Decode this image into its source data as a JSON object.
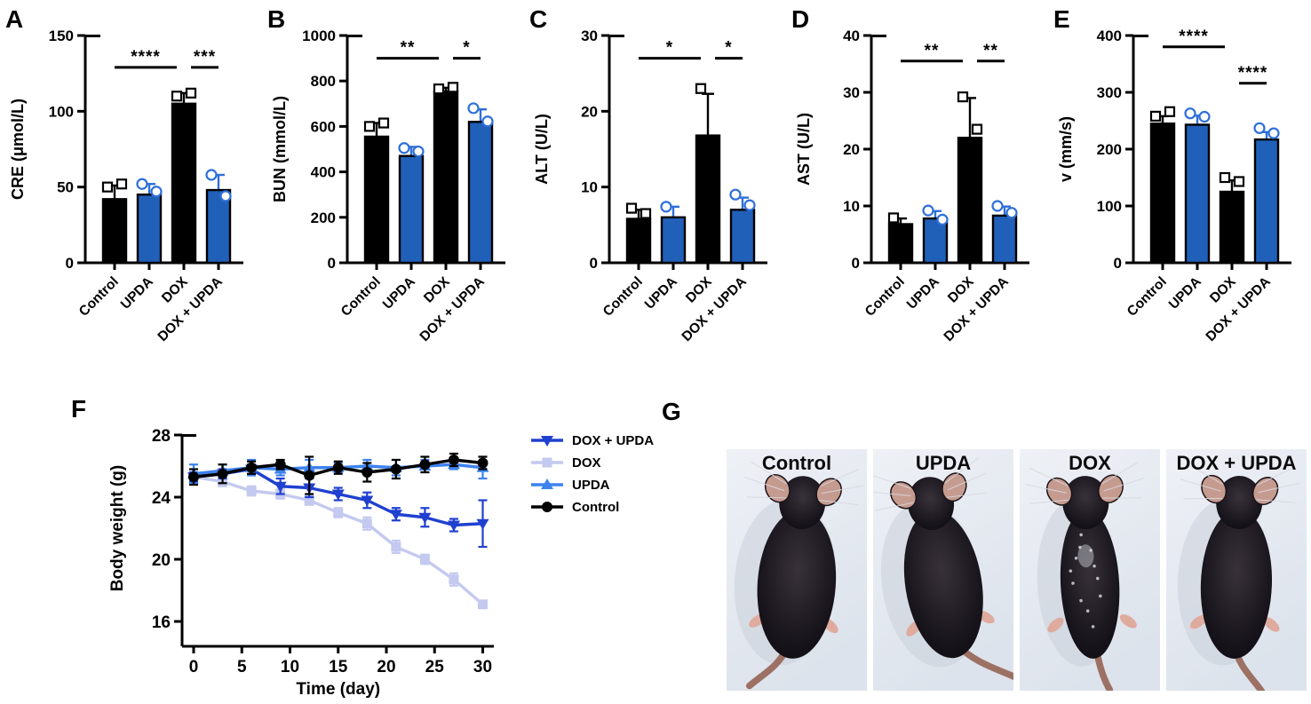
{
  "colors": {
    "bar_blue": "#2160b8",
    "point_blue": "#2e6fd9",
    "black": "#000000",
    "series_dox_upda": "#2040d0",
    "series_dox": "#c3c9ef",
    "series_upda": "#3d82ee",
    "series_control": "#000000",
    "photo_bg_light": "#eef1f6",
    "photo_bg_dark": "#dde3ec"
  },
  "chart_data": [
    {
      "id": "A",
      "panel_letter": "A",
      "type": "bar",
      "ylabel": "CRE (μmol/L)",
      "categories": [
        "Control",
        "UPDA",
        "DOX",
        "DOX + UPDA"
      ],
      "values": [
        42,
        45,
        105,
        48
      ],
      "errors": [
        9,
        7,
        7,
        10
      ],
      "points": [
        [
          50,
          52
        ],
        [
          52,
          47
        ],
        [
          110,
          112
        ],
        [
          58,
          44
        ]
      ],
      "ylim": [
        0,
        150
      ],
      "yticks": [
        0,
        50,
        100,
        150
      ],
      "bar_styles": [
        "black",
        "blue",
        "black",
        "blue"
      ],
      "significance": [
        {
          "from": 0,
          "to": 2,
          "label": "****",
          "y": 129
        },
        {
          "from": 2,
          "to": 3,
          "label": "***",
          "y": 129
        }
      ]
    },
    {
      "id": "B",
      "panel_letter": "B",
      "type": "bar",
      "ylabel": "BUN (mmol/L)",
      "categories": [
        "Control",
        "UPDA",
        "DOX",
        "DOX + UPDA"
      ],
      "values": [
        555,
        470,
        755,
        620
      ],
      "errors": [
        60,
        40,
        15,
        55
      ],
      "points": [
        [
          600,
          615
        ],
        [
          505,
          490
        ],
        [
          765,
          772
        ],
        [
          680,
          622
        ]
      ],
      "ylim": [
        0,
        1000
      ],
      "yticks": [
        0,
        200,
        400,
        600,
        800,
        1000
      ],
      "bar_styles": [
        "black",
        "blue",
        "black",
        "blue"
      ],
      "significance": [
        {
          "from": 0,
          "to": 2,
          "label": "**",
          "y": 900
        },
        {
          "from": 2,
          "to": 3,
          "label": "*",
          "y": 900
        }
      ]
    },
    {
      "id": "C",
      "panel_letter": "C",
      "type": "bar",
      "ylabel": "ALT (U/L)",
      "categories": [
        "Control",
        "UPDA",
        "DOX",
        "DOX + UPDA"
      ],
      "values": [
        5.8,
        6.0,
        16.8,
        7.0
      ],
      "errors": [
        1.2,
        1.4,
        5.5,
        1.6
      ],
      "points": [
        [
          7.2,
          6.5
        ],
        [
          7.4
        ],
        [
          23
        ],
        [
          9,
          7.6
        ]
      ],
      "ylim": [
        0,
        30
      ],
      "yticks": [
        0,
        10,
        20,
        30
      ],
      "bar_styles": [
        "black",
        "blue",
        "black",
        "blue"
      ],
      "significance": [
        {
          "from": 0,
          "to": 2,
          "label": "*",
          "y": 27
        },
        {
          "from": 2,
          "to": 3,
          "label": "*",
          "y": 27
        }
      ]
    },
    {
      "id": "D",
      "panel_letter": "D",
      "type": "bar",
      "ylabel": "AST (U/L)",
      "categories": [
        "Control",
        "UPDA",
        "DOX",
        "DOX + UPDA"
      ],
      "values": [
        6.8,
        7.8,
        22,
        8.3
      ],
      "errors": [
        1.0,
        1.3,
        7.0,
        1.6
      ],
      "points": [
        [
          7.9
        ],
        [
          9.2,
          7.6
        ],
        [
          29.2,
          23.5
        ],
        [
          10,
          8.8
        ]
      ],
      "ylim": [
        0,
        40
      ],
      "yticks": [
        0,
        10,
        20,
        30,
        40
      ],
      "bar_styles": [
        "black",
        "blue",
        "black",
        "blue"
      ],
      "significance": [
        {
          "from": 0,
          "to": 2,
          "label": "**",
          "y": 35.5
        },
        {
          "from": 2,
          "to": 3,
          "label": "**",
          "y": 35.5
        }
      ]
    },
    {
      "id": "E",
      "panel_letter": "E",
      "type": "bar",
      "ylabel": "v (mm/s)",
      "categories": [
        "Control",
        "UPDA",
        "DOX",
        "DOX + UPDA"
      ],
      "values": [
        245,
        243,
        125,
        217
      ],
      "errors": [
        13,
        16,
        20,
        13
      ],
      "points": [
        [
          258,
          266
        ],
        [
          263,
          257
        ],
        [
          150,
          143
        ],
        [
          237,
          228
        ]
      ],
      "ylim": [
        0,
        400
      ],
      "yticks": [
        0,
        100,
        200,
        300,
        400
      ],
      "bar_styles": [
        "black",
        "blue",
        "black",
        "blue"
      ],
      "significance": [
        {
          "from": 0,
          "to": 2,
          "label": "****",
          "y": 380
        },
        {
          "from": 2,
          "to": 3,
          "label": "****",
          "y": 316
        }
      ]
    },
    {
      "id": "F",
      "panel_letter": "F",
      "type": "line",
      "xlabel": "Time (day)",
      "ylabel": "Body weight (g)",
      "x": [
        0,
        3,
        6,
        9,
        12,
        15,
        18,
        21,
        24,
        27,
        30
      ],
      "xticks": [
        0,
        5,
        10,
        15,
        20,
        25,
        30
      ],
      "ylim": [
        16,
        28
      ],
      "yticks": [
        16,
        20,
        24,
        28
      ],
      "series": [
        {
          "name": "DOX + UPDA",
          "marker": "triangle-down",
          "color": "#2040d0",
          "values": [
            25.3,
            25.5,
            25.8,
            24.7,
            24.6,
            24.2,
            23.8,
            22.9,
            22.7,
            22.2,
            22.3
          ],
          "errors": [
            0.3,
            0.3,
            0.3,
            0.5,
            0.6,
            0.4,
            0.5,
            0.4,
            0.6,
            0.4,
            1.5
          ]
        },
        {
          "name": "DOX",
          "marker": "square",
          "color": "#c3c9ef",
          "values": [
            25.3,
            25.0,
            24.4,
            24.2,
            23.8,
            23.0,
            22.3,
            20.8,
            20.0,
            18.7,
            17.1
          ],
          "errors": [
            0.2,
            0.3,
            0.3,
            0.3,
            0.3,
            0.3,
            0.4,
            0.4,
            0.3,
            0.4,
            0.2
          ]
        },
        {
          "name": "UPDA",
          "marker": "triangle-up",
          "color": "#3d82ee",
          "values": [
            25.5,
            25.7,
            25.9,
            25.8,
            25.9,
            25.9,
            26.0,
            25.9,
            26.0,
            26.1,
            25.9
          ],
          "errors": [
            0.6,
            0.4,
            0.5,
            0.4,
            0.5,
            0.3,
            0.4,
            0.5,
            0.4,
            0.3,
            0.7
          ]
        },
        {
          "name": "Control",
          "marker": "circle",
          "color": "#000000",
          "values": [
            25.3,
            25.5,
            25.9,
            26.1,
            25.4,
            25.9,
            25.6,
            25.8,
            26.1,
            26.4,
            26.2
          ],
          "errors": [
            0.5,
            0.6,
            0.4,
            0.3,
            1.2,
            0.4,
            0.6,
            0.6,
            0.5,
            0.4,
            0.4
          ]
        }
      ],
      "legend_position": "right",
      "draw_order": [
        1,
        0,
        2,
        3
      ]
    }
  ],
  "photos": {
    "panel_letter": "G",
    "items": [
      {
        "label": "Control",
        "variant": "control"
      },
      {
        "label": "UPDA",
        "variant": "upda"
      },
      {
        "label": "DOX",
        "variant": "dox"
      },
      {
        "label": "DOX + UPDA",
        "variant": "dox_upda"
      }
    ]
  }
}
